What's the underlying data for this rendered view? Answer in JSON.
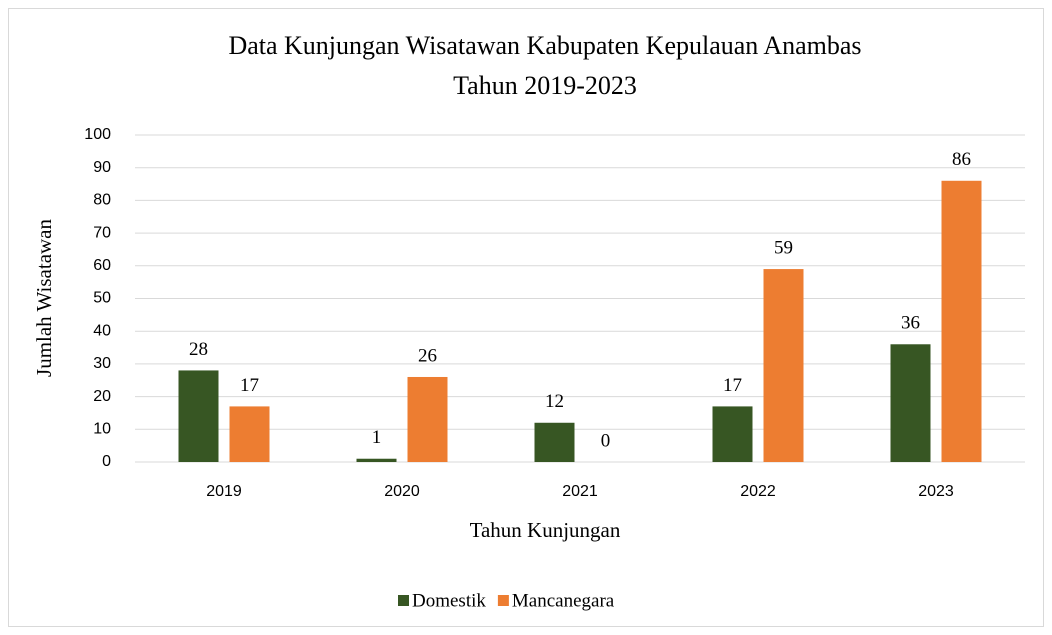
{
  "chart_data": {
    "type": "bar",
    "title": [
      "Data Kunjungan Wisatawan Kabupaten Kepulauan Anambas",
      "Tahun 2019-2023"
    ],
    "x_label": "Tahun Kunjungan",
    "y_label": "Jumlah Wisatawan",
    "categories": [
      "2019",
      "2020",
      "2021",
      "2022",
      "2023"
    ],
    "series": [
      {
        "name": "Domestik",
        "color": "#375623",
        "values": [
          28,
          1,
          12,
          17,
          36
        ]
      },
      {
        "name": "Mancanegara",
        "color": "#ed7d31",
        "values": [
          17,
          26,
          0,
          59,
          86
        ]
      }
    ],
    "ylim": [
      0,
      100
    ],
    "yticks": [
      0,
      10,
      20,
      30,
      40,
      50,
      60,
      70,
      80,
      90,
      100
    ],
    "grid": true,
    "legend": "bottom"
  }
}
